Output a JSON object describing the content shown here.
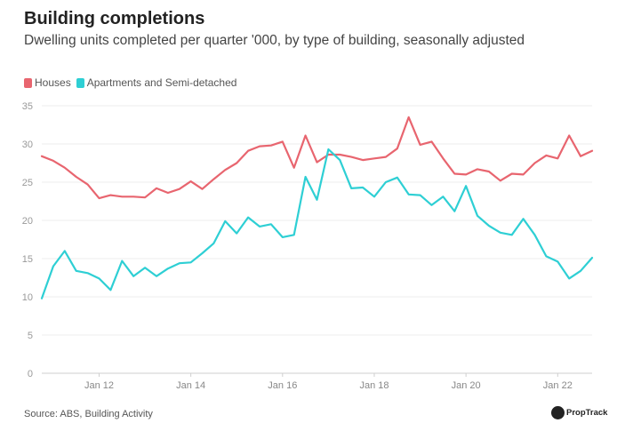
{
  "chart_data": {
    "type": "line",
    "title": "Building completions",
    "subtitle": "Dwelling units completed per quarter '000, by type of building, seasonally adjusted",
    "xlabel": "",
    "ylabel": "",
    "ylim": [
      0,
      35
    ],
    "yticks": [
      0,
      5,
      10,
      15,
      20,
      25,
      30,
      35
    ],
    "xticks": [
      {
        "label": "Jan 12",
        "index": 5
      },
      {
        "label": "Jan 14",
        "index": 13
      },
      {
        "label": "Jan 16",
        "index": 21
      },
      {
        "label": "Jan 18",
        "index": 29
      },
      {
        "label": "Jan 20",
        "index": 37
      },
      {
        "label": "Jan 22",
        "index": 45
      }
    ],
    "grid": true,
    "legend_position": "top-left",
    "series": [
      {
        "name": "Houses",
        "color": "#e8656f",
        "values": [
          28.4,
          27.8,
          26.9,
          25.7,
          24.7,
          22.9,
          23.3,
          23.1,
          23.1,
          23.0,
          24.2,
          23.6,
          24.1,
          25.1,
          24.1,
          25.4,
          26.6,
          27.5,
          29.1,
          29.7,
          29.8,
          30.3,
          26.9,
          31.1,
          27.6,
          28.6,
          28.6,
          28.3,
          27.9,
          28.1,
          28.3,
          29.4,
          33.5,
          29.9,
          30.3,
          28.1,
          26.1,
          26.0,
          26.7,
          26.4,
          25.2,
          26.1,
          26.0,
          27.5,
          28.5,
          28.1,
          31.1,
          28.4,
          29.1
        ]
      },
      {
        "name": "Apartments and Semi-detached",
        "color": "#2ecfd4",
        "values": [
          9.8,
          14.0,
          16.0,
          13.4,
          13.1,
          12.4,
          10.9,
          14.7,
          12.7,
          13.8,
          12.7,
          13.7,
          14.4,
          14.5,
          15.7,
          17.0,
          19.9,
          18.3,
          20.4,
          19.2,
          19.5,
          17.8,
          18.1,
          25.7,
          22.7,
          29.3,
          27.9,
          24.2,
          24.3,
          23.1,
          25.0,
          25.6,
          23.4,
          23.3,
          22.0,
          23.1,
          21.2,
          24.5,
          20.6,
          19.3,
          18.4,
          18.1,
          20.2,
          18.1,
          15.3,
          14.6,
          12.4,
          13.4,
          15.1
        ]
      }
    ]
  },
  "source": "Source: ABS, Building Activity",
  "brand": "PropTrack"
}
